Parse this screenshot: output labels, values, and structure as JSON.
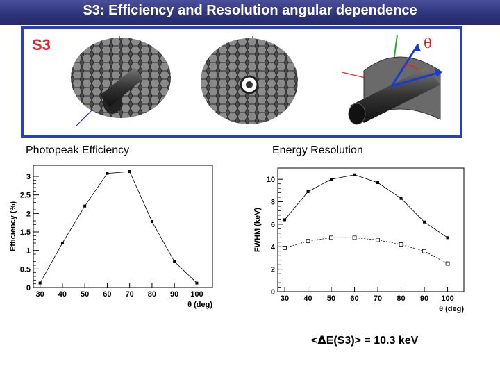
{
  "slide": {
    "title": "S3: Efficiency and Resolution angular dependence",
    "detector_label": "S3",
    "theta_symbol": "θ",
    "z_symbol": "z",
    "caption_left": "Photopeak Efficiency",
    "caption_right": "Energy Resolution",
    "average_label_prefix": "<",
    "average_label_symbol": "Δ",
    "average_label_rest": "E(S3)> = 10.3 keV"
  },
  "colors": {
    "title_bg": "#2e3278",
    "frame_border": "#2a3fb8",
    "accent_red": "#e8202a",
    "accent_blue": "#1a3bd0"
  },
  "chart_data": [
    {
      "type": "line",
      "ylabel": "Efficiency (%)",
      "xlabel": "θ (deg)",
      "x": [
        30,
        40,
        50,
        60,
        70,
        80,
        90,
        100
      ],
      "series": [
        {
          "values": [
            0.12,
            1.2,
            2.2,
            3.08,
            3.13,
            1.78,
            0.7,
            0.12
          ],
          "marker": "filled-square"
        }
      ],
      "xticks": [
        30,
        40,
        50,
        60,
        70,
        80,
        90,
        100
      ],
      "yticks": [
        0,
        0.5,
        1,
        1.5,
        2,
        2.5,
        3
      ],
      "xlim": [
        27,
        107
      ],
      "ylim": [
        0,
        3.3
      ]
    },
    {
      "type": "line",
      "ylabel": "FWHM (keV)",
      "xlabel": "θ (deg)",
      "x": [
        30,
        40,
        50,
        60,
        70,
        80,
        90,
        100
      ],
      "series": [
        {
          "values": [
            6.4,
            8.9,
            10.0,
            10.4,
            9.7,
            8.3,
            6.2,
            4.8
          ],
          "marker": "filled-square"
        },
        {
          "values": [
            3.9,
            4.5,
            4.8,
            4.8,
            4.6,
            4.2,
            3.6,
            2.5
          ],
          "marker": "open-square"
        }
      ],
      "xticks": [
        30,
        40,
        50,
        60,
        70,
        80,
        90,
        100
      ],
      "yticks": [
        0,
        2,
        4,
        6,
        8,
        10
      ],
      "xlim": [
        27,
        107
      ],
      "ylim": [
        0,
        11
      ]
    }
  ]
}
